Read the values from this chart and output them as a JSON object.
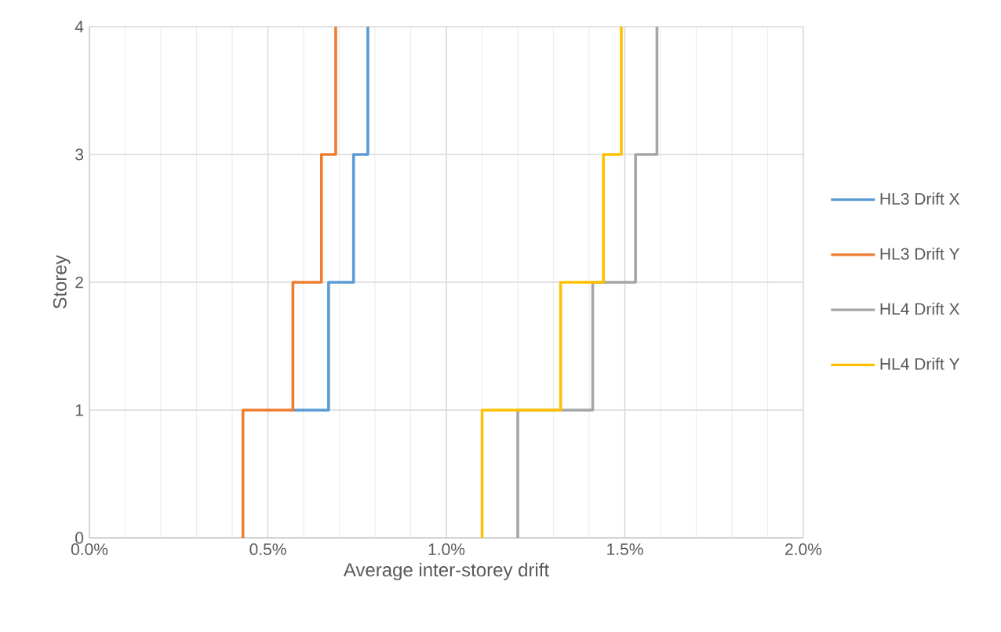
{
  "chart_data": {
    "type": "line",
    "xlabel": "Average inter-storey drift",
    "ylabel": "Storey",
    "xlim": [
      0,
      2
    ],
    "ylim": [
      0,
      4
    ],
    "xticks": [
      {
        "value": 0,
        "label": "0.0%"
      },
      {
        "value": 0.5,
        "label": "0.5%"
      },
      {
        "value": 1,
        "label": "1.0%"
      },
      {
        "value": 1.5,
        "label": "1.5%"
      },
      {
        "value": 2,
        "label": "2.0%"
      }
    ],
    "yticks": [
      0,
      1,
      2,
      3,
      4
    ],
    "grid": true,
    "legend": "right",
    "marker": "none",
    "line_style": "solid",
    "series": [
      {
        "name": "HL3 Drift X",
        "color": "#5b9bd5",
        "x": [
          null,
          0.57,
          0.67,
          0.67,
          0.74,
          0.74,
          0.78,
          0.78
        ],
        "values": [
          null,
          1,
          1,
          2,
          2,
          3,
          3,
          4
        ]
      },
      {
        "name": "HL3 Drift Y",
        "color": "#ed7d31",
        "x": [
          0.43,
          0.43,
          0.57,
          0.57,
          0.65,
          0.65,
          0.69,
          0.69
        ],
        "values": [
          0,
          1,
          1,
          2,
          2,
          3,
          3,
          4
        ]
      },
      {
        "name": "HL4 Drift X",
        "color": "#a5a5a5",
        "x": [
          1.2,
          1.2,
          1.41,
          1.41,
          1.53,
          1.53,
          1.59,
          1.59
        ],
        "values": [
          0,
          1,
          1,
          2,
          2,
          3,
          3,
          4
        ]
      },
      {
        "name": "HL4 Drift Y",
        "color": "#ffc000",
        "x": [
          1.1,
          1.1,
          1.32,
          1.32,
          1.44,
          1.44,
          1.49,
          1.49
        ],
        "values": [
          0,
          1,
          1,
          2,
          2,
          3,
          3,
          4
        ]
      }
    ]
  }
}
